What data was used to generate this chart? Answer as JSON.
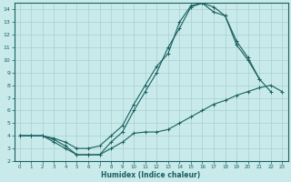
{
  "xlabel": "Humidex (Indice chaleur)",
  "bg_color": "#c8eaea",
  "grid_color": "#aacece",
  "line_color": "#1a6060",
  "xlim": [
    -0.5,
    23.5
  ],
  "ylim": [
    2,
    14.5
  ],
  "xticks": [
    0,
    1,
    2,
    3,
    4,
    5,
    6,
    7,
    8,
    9,
    10,
    11,
    12,
    13,
    14,
    15,
    16,
    17,
    18,
    19,
    20,
    21,
    22,
    23
  ],
  "yticks": [
    2,
    3,
    4,
    5,
    6,
    7,
    8,
    9,
    10,
    11,
    12,
    13,
    14
  ],
  "curve1_x": [
    0,
    1,
    2,
    3,
    4,
    5,
    6,
    7,
    8,
    9,
    10,
    11,
    12,
    13,
    14,
    15,
    16,
    17,
    18,
    19,
    20,
    21,
    22,
    23
  ],
  "curve1_y": [
    4,
    4,
    4,
    3.7,
    3.2,
    2.5,
    2.5,
    2.5,
    3.0,
    3.5,
    4.2,
    4.3,
    4.3,
    4.5,
    5.0,
    5.5,
    6.0,
    6.5,
    6.8,
    7.2,
    7.5,
    7.8,
    8.0,
    7.5
  ],
  "curve2_x": [
    0,
    1,
    2,
    3,
    4,
    5,
    6,
    7,
    8,
    9,
    10,
    11,
    12,
    13,
    14,
    15,
    16,
    17,
    18,
    19,
    20,
    21,
    22,
    23
  ],
  "curve2_y": [
    4,
    4,
    4,
    3.5,
    3.0,
    2.5,
    2.5,
    2.5,
    3.5,
    4.3,
    6.0,
    7.5,
    9.0,
    11.0,
    12.5,
    14.2,
    14.5,
    14.2,
    13.5,
    11.2,
    10.0,
    8.5,
    7.5,
    null
  ],
  "curve3_x": [
    0,
    1,
    2,
    3,
    4,
    5,
    6,
    7,
    8,
    9,
    10,
    11,
    12,
    13,
    14,
    15,
    16,
    17,
    18,
    19,
    20,
    21
  ],
  "curve3_y": [
    4,
    4,
    4,
    3.8,
    3.5,
    3.0,
    3.0,
    3.2,
    4.0,
    4.8,
    6.5,
    8.0,
    9.5,
    10.5,
    13.0,
    14.3,
    14.5,
    13.8,
    13.5,
    11.5,
    10.2,
    8.5
  ]
}
